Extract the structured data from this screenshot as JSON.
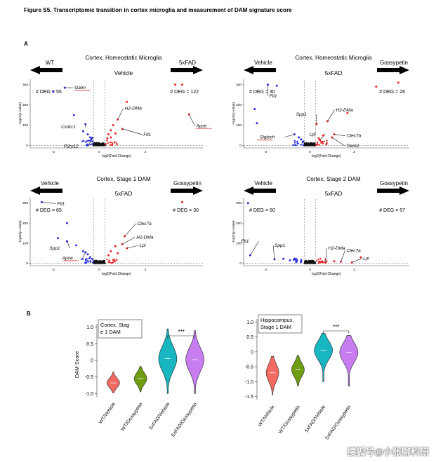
{
  "figure_title": "Figure S5. Transcriptomic transition in cortex microglia and measurement of DAM signature score",
  "panel_a_letter": "A",
  "panel_b_letter": "B",
  "watermark": "搜狐号@小张聊科研",
  "colors": {
    "up": "#e8262a",
    "down": "#2a2ee0",
    "ns": "#111111",
    "teal": "#17b6c0",
    "purple": "#c77df0",
    "salmon": "#f26b63",
    "green": "#6e9d12"
  },
  "volcano_panels": [
    {
      "title": "Cortex, Homeostatic Microglia",
      "left_group": "WT",
      "center_group": "Vehicle",
      "right_group": "5xFAD",
      "left_deg": "# DEG = 55",
      "right_deg": "# DEG = 122",
      "xlabel": "log2(Fold Change)",
      "ylabel": "-log10(p-value)",
      "x_ticks": [
        "-2",
        "0",
        "2"
      ],
      "y_ticks": [
        "0",
        "100",
        "200",
        "300"
      ],
      "genes": [
        "Gatm",
        "Cx3cr1",
        "P2ry12",
        "H2-DMa",
        "Ftl1",
        "Apoe"
      ]
    },
    {
      "title": "Cortex, Homeostatic Microglia",
      "left_group": "Vehicle",
      "center_group": "5xFAD",
      "right_group": "Gossypetin",
      "left_deg": "# DEG = 30",
      "right_deg": "# DEG = 26",
      "xlabel": "log2(Fold Change)",
      "ylabel": "-log10(p-value)",
      "x_ticks": [
        "-2",
        "0",
        "2"
      ],
      "y_ticks": [
        "0",
        "100",
        "200",
        "300"
      ],
      "genes": [
        "Ftl1",
        "Spp1",
        "H2-DMa",
        "Lpl",
        "Clec7a",
        "Trem2",
        "Siglech"
      ]
    },
    {
      "title": "Cortex, Stage 1 DAM",
      "left_group": "Vehicle",
      "center_group": "5xFAD",
      "right_group": "Gossypetin",
      "left_deg": "# DEG = 65",
      "right_deg": "# DEG = 30",
      "xlabel": "log2(Fold Change)",
      "ylabel": "-log10(p-value)",
      "x_ticks": [
        "-2",
        "0",
        "2"
      ],
      "y_ticks": [
        "0",
        "100",
        "200",
        "300"
      ],
      "genes": [
        "Ftl1",
        "Spp1",
        "Apoe",
        "Clec7a",
        "H2-DMa",
        "Lpl"
      ]
    },
    {
      "title": "Cortex, Stage 2 DAM",
      "left_group": "Vehicle",
      "center_group": "5xFAD",
      "right_group": "Gossypetin",
      "left_deg": "# DEG = 60",
      "right_deg": "# DEG = 57",
      "xlabel": "log2(Fold Change)",
      "ylabel": "-log10(p-value)",
      "x_ticks": [
        "-2",
        "0",
        "2"
      ],
      "y_ticks": [
        "0",
        "100",
        "200",
        "300"
      ],
      "genes": [
        "Ftl1",
        "Spp1",
        "H2-DMa",
        "Clec7a",
        "Lpl"
      ]
    }
  ],
  "violin_panels": [
    {
      "title_line1": "Cortex,  Stag",
      "title_line2": "e 1 DAM",
      "significance": "***",
      "ylabel": "DAM Score"
    },
    {
      "title_line1": "Hippocampus,",
      "title_line2": "Stage 1 DAM",
      "significance": "***",
      "ylabel": ""
    }
  ],
  "chart_data": [
    {
      "type": "scatter",
      "title": "Cortex, Homeostatic Microglia",
      "xlabel": "log2(Fold Change)",
      "ylabel": "-log10(p-value)",
      "xlim": [
        -3,
        4.5
      ],
      "ylim": [
        -5,
        320
      ],
      "comparison": [
        "WT",
        "5xFAD"
      ],
      "series": [
        {
          "values": [
            {
              "x": -1.5,
              "y": 285,
              "label": "Gatm"
            },
            {
              "x": -2.0,
              "y": 265
            },
            {
              "x": -0.6,
              "y": 105,
              "label": "Cx3cr1"
            },
            {
              "x": -0.3,
              "y": 38,
              "label": "P2ry12"
            },
            {
              "x": -1.1,
              "y": 150
            },
            {
              "x": -0.7,
              "y": 70
            },
            {
              "x": -0.5,
              "y": 55
            },
            {
              "x": -0.4,
              "y": 40
            },
            {
              "x": -0.35,
              "y": 30
            },
            {
              "x": -0.3,
              "y": 20
            }
          ]
        },
        {
          "values": [
            {
              "x": 0.8,
              "y": 128,
              "label": "H2-DMa"
            },
            {
              "x": 1.0,
              "y": 82,
              "label": "Ftl1"
            },
            {
              "x": 3.9,
              "y": 153,
              "label": "Apoe"
            },
            {
              "x": 3.3,
              "y": 300
            },
            {
              "x": 3.6,
              "y": 300
            },
            {
              "x": 1.2,
              "y": 215
            },
            {
              "x": 0.6,
              "y": 100
            },
            {
              "x": 0.5,
              "y": 75
            },
            {
              "x": 0.4,
              "y": 55
            },
            {
              "x": 0.7,
              "y": 60
            },
            {
              "x": 0.35,
              "y": 35
            },
            {
              "x": 0.5,
              "y": 40
            }
          ]
        }
      ]
    },
    {
      "type": "scatter",
      "title": "Cortex, Homeostatic Microglia",
      "xlabel": "log2(Fold Change)",
      "ylabel": "-log10(p-value)",
      "xlim": [
        -3,
        4.5
      ],
      "ylim": [
        -5,
        320
      ],
      "comparison": [
        "Vehicle",
        "Gossypetin"
      ],
      "series": [
        {
          "values": [
            {
              "x": -1.9,
              "y": 300,
              "label": "Ftl1"
            },
            {
              "x": -1.5,
              "y": 295
            },
            {
              "x": -2.5,
              "y": 180
            },
            {
              "x": -0.7,
              "y": 55,
              "label": "Siglech"
            },
            {
              "x": -2.4,
              "y": 110
            },
            {
              "x": -0.5,
              "y": 40
            },
            {
              "x": -0.4,
              "y": 30
            },
            {
              "x": -0.3,
              "y": 20
            }
          ]
        },
        {
          "values": [
            {
              "x": 0.3,
              "y": 105,
              "label": "Spp1"
            },
            {
              "x": 0.8,
              "y": 120,
              "label": "H2-DMa"
            },
            {
              "x": 0.45,
              "y": 28,
              "label": "Lpl"
            },
            {
              "x": 1.1,
              "y": 55,
              "label": "Clec7a"
            },
            {
              "x": 1.0,
              "y": 40,
              "label": "Trem2"
            },
            {
              "x": 3.0,
              "y": 290
            },
            {
              "x": 4.0,
              "y": 310
            },
            {
              "x": 1.7,
              "y": 160
            },
            {
              "x": 0.6,
              "y": 50
            },
            {
              "x": 0.4,
              "y": 35
            }
          ]
        }
      ]
    },
    {
      "type": "scatter",
      "title": "Cortex, Stage 1 DAM",
      "xlabel": "log2(Fold Change)",
      "ylabel": "-log10(p-value)",
      "xlim": [
        -3,
        4.5
      ],
      "ylim": [
        -5,
        320
      ],
      "comparison": [
        "Vehicle",
        "Gossypetin"
      ],
      "series": [
        {
          "values": [
            {
              "x": -2.5,
              "y": 305,
              "label": "Ftl1"
            },
            {
              "x": -1.4,
              "y": 200
            },
            {
              "x": -1.8,
              "y": 125
            },
            {
              "x": -1.4,
              "y": 110,
              "label": "Spp1"
            },
            {
              "x": -0.6,
              "y": 55,
              "label": "Apoe"
            },
            {
              "x": -1.0,
              "y": 90
            },
            {
              "x": -0.7,
              "y": 60
            },
            {
              "x": -0.5,
              "y": 45
            },
            {
              "x": -0.4,
              "y": 30
            },
            {
              "x": -0.3,
              "y": 20
            }
          ]
        },
        {
          "values": [
            {
              "x": 1.1,
              "y": 135,
              "label": "Clec7a"
            },
            {
              "x": 1.0,
              "y": 95,
              "label": "H2-DMa"
            },
            {
              "x": 1.2,
              "y": 75,
              "label": "Lpl"
            },
            {
              "x": 3.6,
              "y": 305
            },
            {
              "x": 0.7,
              "y": 85
            },
            {
              "x": 0.5,
              "y": 60
            },
            {
              "x": 0.4,
              "y": 40
            },
            {
              "x": 0.8,
              "y": 50
            }
          ]
        }
      ]
    },
    {
      "type": "scatter",
      "title": "Cortex, Stage 2 DAM",
      "xlabel": "log2(Fold Change)",
      "ylabel": "-log10(p-value)",
      "xlim": [
        -3,
        4.5
      ],
      "ylim": [
        -5,
        320
      ],
      "comparison": [
        "Vehicle",
        "Gossypetin"
      ],
      "series": [
        {
          "values": [
            {
              "x": -2.8,
              "y": 300
            },
            {
              "x": -2.7,
              "y": 40,
              "label": "Ftl1"
            },
            {
              "x": -1.6,
              "y": 20,
              "label": "Spp1"
            },
            {
              "x": -1.2,
              "y": 22
            },
            {
              "x": -0.9,
              "y": 15
            },
            {
              "x": -0.6,
              "y": 10
            },
            {
              "x": -0.4,
              "y": 8
            }
          ]
        },
        {
          "values": [
            {
              "x": 0.7,
              "y": 5,
              "label": "H2-DMa"
            },
            {
              "x": 1.4,
              "y": 8,
              "label": "Clec7a"
            },
            {
              "x": 1.9,
              "y": 4,
              "label": "Lpl"
            },
            {
              "x": 2.3,
              "y": 30
            },
            {
              "x": 1.1,
              "y": 10
            },
            {
              "x": 0.5,
              "y": 6
            }
          ]
        }
      ]
    },
    {
      "type": "violin",
      "title": "Cortex,  Stag e 1 DAM",
      "ylabel": "DAM Score",
      "ylim": [
        -1.1,
        1.1
      ],
      "categories": [
        "WT/Vehicle",
        "WT/Gossypetin",
        "5xFAD/Vehicle",
        "5xFAD/Gossypetin"
      ],
      "y_ticks": [
        "1.0",
        "0.5",
        "0",
        "-0.5",
        "-1.0"
      ],
      "medians": [
        -0.68,
        -0.55,
        0.05,
        0.02
      ],
      "ranges": [
        [
          -0.98,
          -0.35
        ],
        [
          -0.95,
          -0.18
        ],
        [
          -1.0,
          0.95
        ],
        [
          -1.0,
          0.9
        ]
      ],
      "significance": "***"
    },
    {
      "type": "violin",
      "title": "Hippocampus, Stage 1 DAM",
      "ylim": [
        -1.6,
        1.1
      ],
      "categories": [
        "WT/Vehicle",
        "WT/Gossypetin",
        "5xFAD/Vehicle",
        "5xFAD/Gossypetin"
      ],
      "y_ticks": [
        "1.0",
        "0.5",
        "0",
        "-0.5",
        "-1.0",
        "-1.5"
      ],
      "medians": [
        -0.7,
        -0.6,
        0.05,
        -0.02
      ],
      "ranges": [
        [
          -1.45,
          -0.15
        ],
        [
          -1.15,
          -0.12
        ],
        [
          -1.0,
          0.62
        ],
        [
          -1.15,
          0.55
        ]
      ],
      "significance": "***"
    }
  ]
}
